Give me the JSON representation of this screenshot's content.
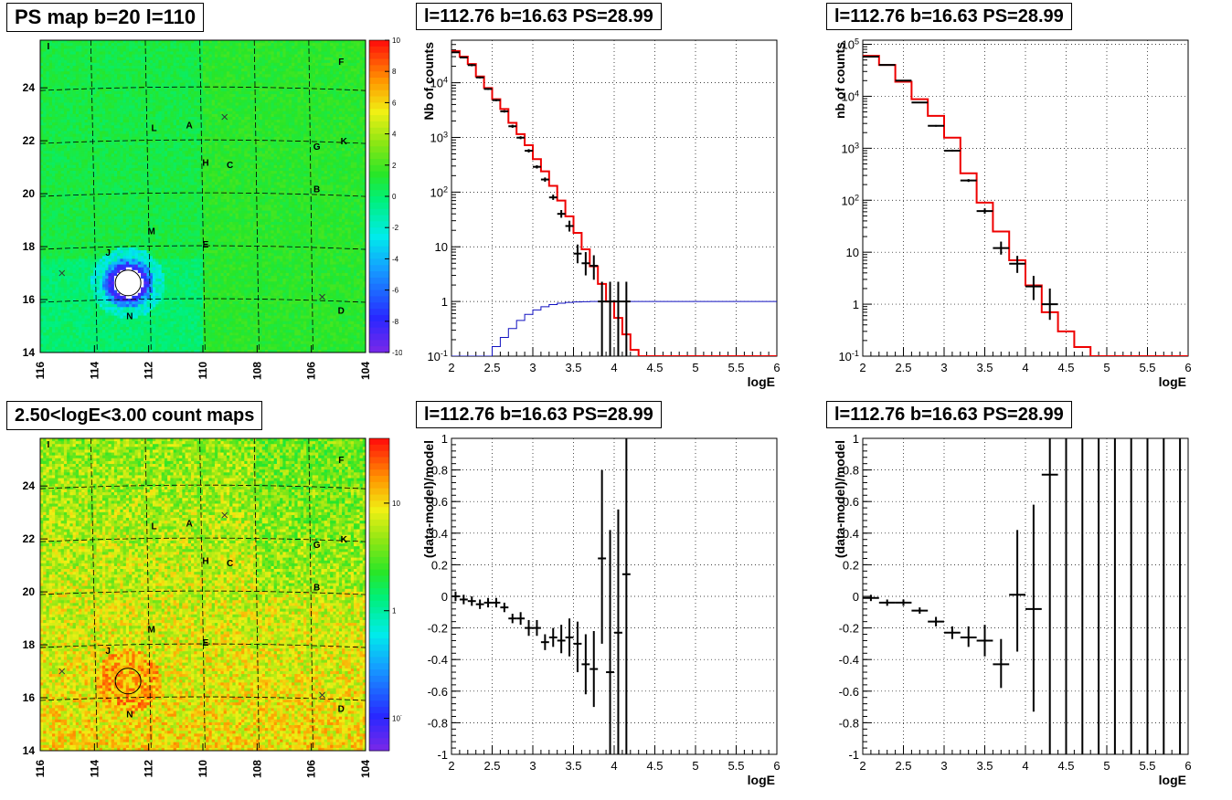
{
  "panels": {
    "map_ps_title": "PS map b=20 l=110",
    "map_count_title": "2.50<logE<3.00 count maps",
    "spec_lin_title": "l=112.76 b=16.63 PS=28.99",
    "spec_log_title": "l=112.76 b=16.63 PS=28.99",
    "res_lin_title": "l=112.76 b=16.63 PS=28.99",
    "res_log_title": "l=112.76 b=16.63 PS=28.99"
  },
  "chart_data": [
    {
      "id": "ps-map",
      "type": "heatmap",
      "title": "PS map b=20 l=110",
      "x_ticks": [
        "116",
        "114",
        "112",
        "110",
        "108",
        "106",
        "104"
      ],
      "y_ticks": [
        "14",
        "16",
        "18",
        "20",
        "22",
        "24"
      ],
      "xlim": [
        116,
        104
      ],
      "ylim": [
        14,
        25.8
      ],
      "colorbar_ticks": [
        "10",
        "8",
        "6",
        "4",
        "2",
        "0",
        "-2",
        "-4",
        "-6",
        "-8",
        "-10"
      ],
      "colorbar_range": [
        -10,
        10
      ],
      "source_circle": {
        "l": 112.76,
        "b": 16.63
      },
      "markers": [
        {
          "label": "I",
          "l": 115.7,
          "b": 25.6
        },
        {
          "label": "F",
          "l": 104.9,
          "b": 25.0
        },
        {
          "label": "L",
          "l": 111.8,
          "b": 22.5
        },
        {
          "label": "A",
          "l": 110.5,
          "b": 22.6
        },
        {
          "label": "G",
          "l": 105.8,
          "b": 21.8
        },
        {
          "label": "K",
          "l": 104.8,
          "b": 22.0
        },
        {
          "label": "H",
          "l": 109.9,
          "b": 21.2
        },
        {
          "label": "C",
          "l": 109.0,
          "b": 21.1
        },
        {
          "label": "B",
          "l": 105.8,
          "b": 20.2
        },
        {
          "label": "M",
          "l": 111.9,
          "b": 18.6
        },
        {
          "label": "E",
          "l": 109.9,
          "b": 18.1
        },
        {
          "label": "J",
          "l": 113.5,
          "b": 17.8
        },
        {
          "label": "N",
          "l": 112.7,
          "b": 15.4
        },
        {
          "label": "D",
          "l": 104.9,
          "b": 15.6
        }
      ],
      "crosses": [
        {
          "l": 109.2,
          "b": 22.9
        },
        {
          "l": 115.2,
          "b": 17.0
        },
        {
          "l": 105.6,
          "b": 16.1
        }
      ]
    },
    {
      "id": "count-map",
      "type": "heatmap",
      "title": "2.50<logE<3.00 count maps",
      "x_ticks": [
        "116",
        "114",
        "112",
        "110",
        "108",
        "106",
        "104"
      ],
      "y_ticks": [
        "14",
        "16",
        "18",
        "20",
        "22",
        "24"
      ],
      "xlim": [
        116,
        104
      ],
      "ylim": [
        14,
        25.8
      ],
      "colorbar_ticks": [
        "10",
        "1",
        "10^-1"
      ],
      "colorbar_range_log": [
        0.05,
        40
      ],
      "source_circle": {
        "l": 112.76,
        "b": 16.63
      },
      "markers": [
        {
          "label": "I",
          "l": 115.7,
          "b": 25.6
        },
        {
          "label": "F",
          "l": 104.9,
          "b": 25.0
        },
        {
          "label": "L",
          "l": 111.8,
          "b": 22.5
        },
        {
          "label": "A",
          "l": 110.5,
          "b": 22.6
        },
        {
          "label": "G",
          "l": 105.8,
          "b": 21.8
        },
        {
          "label": "K",
          "l": 104.8,
          "b": 22.0
        },
        {
          "label": "H",
          "l": 109.9,
          "b": 21.2
        },
        {
          "label": "C",
          "l": 109.0,
          "b": 21.1
        },
        {
          "label": "B",
          "l": 105.8,
          "b": 20.2
        },
        {
          "label": "M",
          "l": 111.9,
          "b": 18.6
        },
        {
          "label": "E",
          "l": 109.9,
          "b": 18.1
        },
        {
          "label": "J",
          "l": 113.5,
          "b": 17.8
        },
        {
          "label": "N",
          "l": 112.7,
          "b": 15.4
        },
        {
          "label": "D",
          "l": 104.9,
          "b": 15.6
        }
      ],
      "crosses": [
        {
          "l": 109.2,
          "b": 22.9
        },
        {
          "l": 115.2,
          "b": 17.0
        },
        {
          "l": 105.6,
          "b": 16.1
        }
      ]
    },
    {
      "id": "spectrum-fine",
      "type": "line",
      "title": "l=112.76 b=16.63 PS=28.99",
      "xlabel": "logE",
      "ylabel": "Nb of counts",
      "xlim": [
        2,
        6
      ],
      "ylim_log": [
        0.1,
        60000
      ],
      "log_y": true,
      "x_ticks": [
        "2",
        "2.5",
        "3",
        "3.5",
        "4",
        "4.5",
        "5",
        "5.5",
        "6"
      ],
      "y_ticks": [
        {
          "v": 0.1,
          "t": "10^-1"
        },
        {
          "v": 1,
          "t": "1"
        },
        {
          "v": 10,
          "t": "10"
        },
        {
          "v": 100,
          "t": "10^2"
        },
        {
          "v": 1000,
          "t": "10^3"
        },
        {
          "v": 10000,
          "t": "10^4"
        }
      ],
      "grid": true,
      "bin_width": 0.1,
      "model": {
        "bins_low": [
          2.0,
          2.1,
          2.2,
          2.3,
          2.4,
          2.5,
          2.6,
          2.7,
          2.8,
          2.9,
          3.0,
          3.1,
          3.2,
          3.3,
          3.4,
          3.5,
          3.6,
          3.7,
          3.8,
          3.9,
          4.0,
          4.1,
          4.2,
          4.3,
          4.4,
          4.5,
          4.6,
          4.7,
          4.8,
          4.9,
          5.0,
          5.1,
          5.2,
          5.3,
          5.4,
          5.5,
          5.6,
          5.7,
          5.8,
          5.9
        ],
        "values": [
          38000,
          30000,
          22000,
          13000,
          8000,
          5000,
          3300,
          1850,
          1150,
          720,
          400,
          240,
          130,
          70,
          36,
          18,
          9,
          4.4,
          2.1,
          1.0,
          0.5,
          0.25,
          0.13,
          0.1,
          0.1,
          0.1,
          0.1,
          0.1,
          0.1,
          0.1,
          0.1,
          0.1,
          0.1,
          0.1,
          0.1,
          0.1,
          0.1,
          0.1,
          0.1,
          0.1
        ]
      },
      "acceptance": {
        "bins_low": [
          2.0,
          2.1,
          2.2,
          2.3,
          2.4,
          2.5,
          2.6,
          2.7,
          2.8,
          2.9,
          3.0,
          3.1,
          3.2,
          3.3,
          3.4,
          3.5,
          3.6,
          3.7,
          3.8,
          3.9,
          4.0,
          4.1,
          4.2,
          4.3,
          4.4,
          4.5,
          4.6,
          4.7,
          4.8,
          4.9,
          5.0,
          5.1,
          5.2,
          5.3,
          5.4,
          5.5,
          5.6,
          5.7,
          5.8,
          5.9
        ],
        "values": [
          0.1,
          0.1,
          0.1,
          0.1,
          0.1,
          0.15,
          0.22,
          0.32,
          0.45,
          0.58,
          0.7,
          0.8,
          0.88,
          0.93,
          0.96,
          0.98,
          0.99,
          1,
          1,
          1,
          1,
          1,
          1,
          1,
          1,
          1,
          1,
          1,
          1,
          1,
          1,
          1,
          1,
          1,
          1,
          1,
          1,
          1,
          1,
          1
        ]
      },
      "data": [
        {
          "x": 2.05,
          "y": 36000,
          "ylo": 35000,
          "yhi": 37000
        },
        {
          "x": 2.15,
          "y": 29000,
          "ylo": 28000,
          "yhi": 30000
        },
        {
          "x": 2.25,
          "y": 21000,
          "ylo": 20000,
          "yhi": 22000
        },
        {
          "x": 2.35,
          "y": 12500,
          "ylo": 12000,
          "yhi": 13000
        },
        {
          "x": 2.45,
          "y": 7700,
          "ylo": 7400,
          "yhi": 8000
        },
        {
          "x": 2.55,
          "y": 4800,
          "ylo": 4600,
          "yhi": 5000
        },
        {
          "x": 2.65,
          "y": 3000,
          "ylo": 2850,
          "yhi": 3150
        },
        {
          "x": 2.75,
          "y": 1600,
          "ylo": 1500,
          "yhi": 1700
        },
        {
          "x": 2.85,
          "y": 990,
          "ylo": 930,
          "yhi": 1050
        },
        {
          "x": 2.95,
          "y": 570,
          "ylo": 530,
          "yhi": 610
        },
        {
          "x": 3.05,
          "y": 290,
          "ylo": 270,
          "yhi": 310
        },
        {
          "x": 3.15,
          "y": 170,
          "ylo": 155,
          "yhi": 185
        },
        {
          "x": 3.25,
          "y": 80,
          "ylo": 72,
          "yhi": 90
        },
        {
          "x": 3.35,
          "y": 40,
          "ylo": 34,
          "yhi": 47
        },
        {
          "x": 3.45,
          "y": 24,
          "ylo": 19,
          "yhi": 30
        },
        {
          "x": 3.55,
          "y": 7.5,
          "ylo": 5,
          "yhi": 11
        },
        {
          "x": 3.65,
          "y": 5,
          "ylo": 3,
          "yhi": 8
        },
        {
          "x": 3.75,
          "y": 4.5,
          "ylo": 2.5,
          "yhi": 7
        },
        {
          "x": 3.85,
          "y": 1,
          "ylo": 0.1,
          "yhi": 2.3
        },
        {
          "x": 3.95,
          "y": 1,
          "ylo": 0.1,
          "yhi": 2.3
        },
        {
          "x": 4.05,
          "y": 1,
          "ylo": 0.1,
          "yhi": 2.3
        },
        {
          "x": 4.15,
          "y": 1,
          "ylo": 0.1,
          "yhi": 2.3
        }
      ]
    },
    {
      "id": "spectrum-coarse",
      "type": "line",
      "title": "l=112.76 b=16.63 PS=28.99",
      "xlabel": "logE",
      "ylabel": "nb of counts",
      "xlim": [
        2,
        6
      ],
      "ylim_log": [
        0.1,
        120000
      ],
      "log_y": true,
      "x_ticks": [
        "2",
        "2.5",
        "3",
        "3.5",
        "4",
        "4.5",
        "5",
        "5.5",
        "6"
      ],
      "y_ticks": [
        {
          "v": 0.1,
          "t": "10^-1"
        },
        {
          "v": 1,
          "t": "1"
        },
        {
          "v": 10,
          "t": "10"
        },
        {
          "v": 100,
          "t": "10^2"
        },
        {
          "v": 1000,
          "t": "10^3"
        },
        {
          "v": 10000,
          "t": "10^4"
        },
        {
          "v": 100000,
          "t": "10^5"
        }
      ],
      "grid": true,
      "bin_width": 0.2,
      "model": {
        "bins_low": [
          2.0,
          2.2,
          2.4,
          2.6,
          2.8,
          3.0,
          3.2,
          3.4,
          3.6,
          3.8,
          4.0,
          4.2,
          4.4,
          4.6,
          4.8,
          5.0,
          5.2,
          5.4,
          5.6,
          5.8
        ],
        "values": [
          60000,
          40000,
          19000,
          8800,
          4200,
          1600,
          330,
          90,
          25,
          7,
          2.3,
          0.7,
          0.3,
          0.15,
          0.1,
          0.1,
          0.1,
          0.1,
          0.1,
          0.1
        ]
      },
      "data": [
        {
          "x": 2.1,
          "y": 58000,
          "ylo": 57000,
          "yhi": 59000
        },
        {
          "x": 2.3,
          "y": 40000,
          "ylo": 39000,
          "yhi": 41000
        },
        {
          "x": 2.5,
          "y": 20000,
          "ylo": 19500,
          "yhi": 20500
        },
        {
          "x": 2.7,
          "y": 7600,
          "ylo": 7400,
          "yhi": 7800
        },
        {
          "x": 2.9,
          "y": 2700,
          "ylo": 2600,
          "yhi": 2800
        },
        {
          "x": 3.1,
          "y": 900,
          "ylo": 860,
          "yhi": 940
        },
        {
          "x": 3.3,
          "y": 240,
          "ylo": 225,
          "yhi": 255
        },
        {
          "x": 3.5,
          "y": 62,
          "ylo": 55,
          "yhi": 70
        },
        {
          "x": 3.7,
          "y": 12,
          "ylo": 9,
          "yhi": 16
        },
        {
          "x": 3.9,
          "y": 6,
          "ylo": 4,
          "yhi": 8.5
        },
        {
          "x": 4.1,
          "y": 2.2,
          "ylo": 1.2,
          "yhi": 3.5
        },
        {
          "x": 4.3,
          "y": 1,
          "ylo": 0.5,
          "yhi": 2
        }
      ]
    },
    {
      "id": "residual-fine",
      "type": "scatter",
      "title": "l=112.76 b=16.63 PS=28.99",
      "xlabel": "logE",
      "ylabel": "(data-model)/model",
      "xlim": [
        2,
        6
      ],
      "ylim": [
        -1,
        1
      ],
      "x_ticks": [
        "2",
        "2.5",
        "3",
        "3.5",
        "4",
        "4.5",
        "5",
        "5.5",
        "6"
      ],
      "y_ticks": [
        "-1",
        "-0.8",
        "-0.6",
        "-0.4",
        "-0.2",
        "0",
        "0.2",
        "0.4",
        "0.6",
        "0.8",
        "1"
      ],
      "grid": true,
      "bin_width": 0.1,
      "data": [
        {
          "x": 2.05,
          "y": 0.0,
          "ylo": -0.03,
          "yhi": 0.03
        },
        {
          "x": 2.15,
          "y": -0.02,
          "ylo": -0.05,
          "yhi": 0.01
        },
        {
          "x": 2.25,
          "y": -0.03,
          "ylo": -0.06,
          "yhi": 0.0
        },
        {
          "x": 2.35,
          "y": -0.05,
          "ylo": -0.08,
          "yhi": -0.02
        },
        {
          "x": 2.45,
          "y": -0.04,
          "ylo": -0.07,
          "yhi": -0.01
        },
        {
          "x": 2.55,
          "y": -0.04,
          "ylo": -0.07,
          "yhi": -0.01
        },
        {
          "x": 2.65,
          "y": -0.07,
          "ylo": -0.1,
          "yhi": -0.04
        },
        {
          "x": 2.75,
          "y": -0.14,
          "ylo": -0.17,
          "yhi": -0.11
        },
        {
          "x": 2.85,
          "y": -0.14,
          "ylo": -0.18,
          "yhi": -0.1
        },
        {
          "x": 2.95,
          "y": -0.2,
          "ylo": -0.25,
          "yhi": -0.15
        },
        {
          "x": 3.05,
          "y": -0.2,
          "ylo": -0.25,
          "yhi": -0.15
        },
        {
          "x": 3.15,
          "y": -0.29,
          "ylo": -0.34,
          "yhi": -0.24
        },
        {
          "x": 3.25,
          "y": -0.26,
          "ylo": -0.32,
          "yhi": -0.2
        },
        {
          "x": 3.35,
          "y": -0.28,
          "ylo": -0.36,
          "yhi": -0.18
        },
        {
          "x": 3.45,
          "y": -0.26,
          "ylo": -0.38,
          "yhi": -0.14
        },
        {
          "x": 3.55,
          "y": -0.3,
          "ylo": -0.48,
          "yhi": -0.16
        },
        {
          "x": 3.65,
          "y": -0.43,
          "ylo": -0.62,
          "yhi": -0.24
        },
        {
          "x": 3.75,
          "y": -0.46,
          "ylo": -0.7,
          "yhi": -0.22
        },
        {
          "x": 3.85,
          "y": 0.24,
          "ylo": -0.3,
          "yhi": 0.8
        },
        {
          "x": 3.95,
          "y": -0.48,
          "ylo": -1,
          "yhi": 0.42
        },
        {
          "x": 4.05,
          "y": -0.23,
          "ylo": -1,
          "yhi": 0.55
        },
        {
          "x": 4.15,
          "y": 0.14,
          "ylo": -1,
          "yhi": 1
        }
      ]
    },
    {
      "id": "residual-coarse",
      "type": "scatter",
      "title": "l=112.76 b=16.63 PS=28.99",
      "xlabel": "logE",
      "ylabel": "(data-model)/model",
      "xlim": [
        2,
        6
      ],
      "ylim": [
        -1,
        1
      ],
      "x_ticks": [
        "2",
        "2.5",
        "3",
        "3.5",
        "4",
        "4.5",
        "5",
        "5.5",
        "6"
      ],
      "y_ticks": [
        "-1",
        "-0.8",
        "-0.6",
        "-0.4",
        "-0.2",
        "0",
        "0.2",
        "0.4",
        "0.6",
        "0.8",
        "1"
      ],
      "grid": true,
      "bin_width": 0.2,
      "data": [
        {
          "x": 2.1,
          "y": -0.01,
          "ylo": -0.03,
          "yhi": 0.01
        },
        {
          "x": 2.3,
          "y": -0.04,
          "ylo": -0.06,
          "yhi": -0.02
        },
        {
          "x": 2.5,
          "y": -0.04,
          "ylo": -0.06,
          "yhi": -0.02
        },
        {
          "x": 2.7,
          "y": -0.09,
          "ylo": -0.11,
          "yhi": -0.07
        },
        {
          "x": 2.9,
          "y": -0.16,
          "ylo": -0.19,
          "yhi": -0.13
        },
        {
          "x": 3.1,
          "y": -0.23,
          "ylo": -0.27,
          "yhi": -0.19
        },
        {
          "x": 3.3,
          "y": -0.26,
          "ylo": -0.32,
          "yhi": -0.19
        },
        {
          "x": 3.5,
          "y": -0.28,
          "ylo": -0.38,
          "yhi": -0.18
        },
        {
          "x": 3.7,
          "y": -0.43,
          "ylo": -0.58,
          "yhi": -0.27
        },
        {
          "x": 3.9,
          "y": 0.01,
          "ylo": -0.35,
          "yhi": 0.42
        },
        {
          "x": 4.1,
          "y": -0.08,
          "ylo": -0.73,
          "yhi": 0.58
        },
        {
          "x": 4.3,
          "y": 0.77,
          "ylo": -1,
          "yhi": 1
        },
        {
          "x": 4.5,
          "y": null,
          "ylo": -1,
          "yhi": 1
        },
        {
          "x": 4.7,
          "y": null,
          "ylo": -1,
          "yhi": 1
        },
        {
          "x": 4.9,
          "y": null,
          "ylo": -1,
          "yhi": 1
        },
        {
          "x": 5.1,
          "y": null,
          "ylo": -1,
          "yhi": 1
        },
        {
          "x": 5.3,
          "y": null,
          "ylo": -1,
          "yhi": 1
        },
        {
          "x": 5.5,
          "y": null,
          "ylo": -1,
          "yhi": 1
        },
        {
          "x": 5.7,
          "y": null,
          "ylo": -1,
          "yhi": 1
        },
        {
          "x": 5.9,
          "y": null,
          "ylo": -1,
          "yhi": 1
        }
      ]
    }
  ]
}
